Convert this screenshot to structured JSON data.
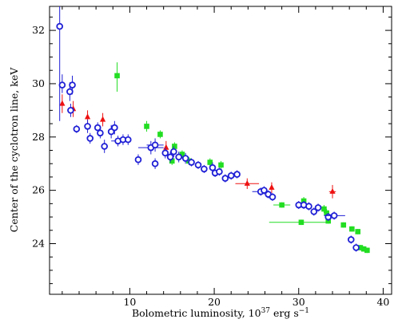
{
  "chart_data": {
    "type": "scatter",
    "title": "",
    "xlabel": "Bolometric luminosity, 10",
    "xlabel_sup": "37",
    "xlabel_unit": " erg s",
    "xlabel_unit_sup": "−1",
    "ylabel": "Center of the cyclotron line, keV",
    "xlim": [
      0.5,
      41
    ],
    "ylim": [
      22.1,
      32.9
    ],
    "xticks": [
      10,
      20,
      30,
      40
    ],
    "xtick_labels": [
      "10",
      "20",
      "30",
      "40"
    ],
    "yticks": [
      24,
      26,
      28,
      30,
      32
    ],
    "ytick_labels": [
      "24",
      "26",
      "28",
      "30",
      "32"
    ],
    "grid": false,
    "legend": "none",
    "series": [
      {
        "marker": "open-circle",
        "color": "#1f1fd6",
        "points": [
          {
            "x": 1.7,
            "y": 32.15,
            "ylo": 28.6,
            "yhi": 32.9
          },
          {
            "x": 2.0,
            "y": 29.95,
            "ylo": 29.65,
            "yhi": 30.35
          },
          {
            "x": 2.9,
            "y": 29.7,
            "ylo": 29.35,
            "yhi": 30.05
          },
          {
            "x": 3.2,
            "y": 29.95,
            "ylo": 29.6,
            "yhi": 30.3
          },
          {
            "x": 3.0,
            "y": 29.0,
            "ylo": 28.75,
            "yhi": 29.25
          },
          {
            "x": 3.7,
            "y": 28.3,
            "ylo": 28.15,
            "yhi": 28.45
          },
          {
            "x": 5.0,
            "y": 28.4,
            "ylo": 28.15,
            "yhi": 28.65
          },
          {
            "x": 5.3,
            "y": 27.95,
            "ylo": 27.75,
            "yhi": 28.15
          },
          {
            "x": 6.2,
            "y": 28.35,
            "ylo": 28.15,
            "yhi": 28.55
          },
          {
            "x": 6.5,
            "y": 28.15,
            "ylo": 27.95,
            "yhi": 28.35
          },
          {
            "x": 7.0,
            "y": 27.65,
            "ylo": 27.4,
            "yhi": 27.9
          },
          {
            "x": 7.8,
            "y": 28.2,
            "ylo": 27.95,
            "yhi": 28.45
          },
          {
            "x": 8.2,
            "y": 28.35,
            "ylo": 28.1,
            "yhi": 28.6
          },
          {
            "x": 8.6,
            "y": 27.85,
            "ylo": 27.65,
            "yhi": 28.05,
            "xlo": 7.8,
            "xhi": 9.4
          },
          {
            "x": 9.2,
            "y": 27.9,
            "ylo": 27.7,
            "yhi": 28.1
          },
          {
            "x": 9.8,
            "y": 27.9,
            "ylo": 27.7,
            "yhi": 28.1
          },
          {
            "x": 11.0,
            "y": 27.15,
            "ylo": 26.95,
            "yhi": 27.35
          },
          {
            "x": 12.5,
            "y": 27.6,
            "ylo": 27.35,
            "yhi": 27.85,
            "xlo": 11.0,
            "xhi": 14.0
          },
          {
            "x": 13.0,
            "y": 27.7,
            "ylo": 27.45,
            "yhi": 27.95,
            "xlo": 12.0,
            "xhi": 14.0
          },
          {
            "x": 13.0,
            "y": 27.0,
            "ylo": 26.8,
            "yhi": 27.2
          },
          {
            "x": 14.2,
            "y": 27.4,
            "ylo": 27.2,
            "yhi": 27.6
          },
          {
            "x": 14.8,
            "y": 27.25,
            "ylo": 27.05,
            "yhi": 27.45
          },
          {
            "x": 15.2,
            "y": 27.45,
            "ylo": 27.25,
            "yhi": 27.65
          },
          {
            "x": 15.8,
            "y": 27.25,
            "ylo": 27.05,
            "yhi": 27.45
          },
          {
            "x": 16.6,
            "y": 27.2,
            "ylo": 27.0,
            "yhi": 27.4
          },
          {
            "x": 17.3,
            "y": 27.05,
            "ylo": 26.9,
            "yhi": 27.2
          },
          {
            "x": 18.1,
            "y": 26.95,
            "ylo": 26.8,
            "yhi": 27.1
          },
          {
            "x": 18.8,
            "y": 26.8,
            "ylo": 26.65,
            "yhi": 26.95
          },
          {
            "x": 19.8,
            "y": 26.85,
            "ylo": 26.65,
            "yhi": 27.05
          },
          {
            "x": 20.1,
            "y": 26.65,
            "ylo": 26.5,
            "yhi": 26.8
          },
          {
            "x": 20.6,
            "y": 26.7,
            "ylo": 26.55,
            "yhi": 26.85
          },
          {
            "x": 21.3,
            "y": 26.45,
            "ylo": 26.3,
            "yhi": 26.6
          },
          {
            "x": 22.0,
            "y": 26.55,
            "ylo": 26.4,
            "yhi": 26.7
          },
          {
            "x": 22.7,
            "y": 26.6,
            "ylo": 26.45,
            "yhi": 26.75
          },
          {
            "x": 25.5,
            "y": 25.95,
            "ylo": 25.8,
            "yhi": 26.1,
            "xlo": 24.5,
            "xhi": 26.5
          },
          {
            "x": 25.9,
            "y": 26.0,
            "ylo": 25.85,
            "yhi": 26.15
          },
          {
            "x": 26.4,
            "y": 25.85,
            "ylo": 25.7,
            "yhi": 26.0
          },
          {
            "x": 26.9,
            "y": 25.75,
            "ylo": 25.6,
            "yhi": 25.9
          },
          {
            "x": 30.0,
            "y": 25.45,
            "ylo": 25.3,
            "yhi": 25.6
          },
          {
            "x": 30.6,
            "y": 25.45,
            "ylo": 25.3,
            "yhi": 25.6
          },
          {
            "x": 31.2,
            "y": 25.4,
            "ylo": 25.25,
            "yhi": 25.55
          },
          {
            "x": 31.8,
            "y": 25.2,
            "ylo": 25.05,
            "yhi": 25.35
          },
          {
            "x": 32.3,
            "y": 25.35,
            "ylo": 25.2,
            "yhi": 25.5
          },
          {
            "x": 33.5,
            "y": 25.0,
            "ylo": 24.85,
            "yhi": 25.15
          },
          {
            "x": 34.2,
            "y": 25.05,
            "ylo": 24.9,
            "yhi": 25.2,
            "xlo": 33.0,
            "xhi": 35.5
          },
          {
            "x": 36.2,
            "y": 24.15,
            "ylo": 24.0,
            "yhi": 24.3
          },
          {
            "x": 36.8,
            "y": 23.85,
            "ylo": 23.7,
            "yhi": 24.0
          }
        ]
      },
      {
        "marker": "filled-square",
        "color": "#22dd22",
        "points": [
          {
            "x": 8.5,
            "y": 30.3,
            "ylo": 29.7,
            "yhi": 30.8
          },
          {
            "x": 12.0,
            "y": 28.4,
            "ylo": 28.2,
            "yhi": 28.6
          },
          {
            "x": 13.6,
            "y": 28.1,
            "ylo": 27.95,
            "yhi": 28.25
          },
          {
            "x": 15.3,
            "y": 27.65,
            "ylo": 27.5,
            "yhi": 27.8
          },
          {
            "x": 16.2,
            "y": 27.35,
            "ylo": 27.2,
            "yhi": 27.5
          },
          {
            "x": 15.0,
            "y": 27.1,
            "ylo": 26.95,
            "yhi": 27.25
          },
          {
            "x": 17.0,
            "y": 27.1,
            "ylo": 26.95,
            "yhi": 27.25
          },
          {
            "x": 19.5,
            "y": 27.05,
            "ylo": 26.9,
            "yhi": 27.2
          },
          {
            "x": 20.8,
            "y": 26.95,
            "ylo": 26.8,
            "yhi": 27.1
          },
          {
            "x": 28.0,
            "y": 25.45,
            "ylo": 25.35,
            "yhi": 25.55,
            "xlo": 27.0,
            "xhi": 29.0
          },
          {
            "x": 30.6,
            "y": 25.6,
            "ylo": 25.45,
            "yhi": 25.75
          },
          {
            "x": 30.3,
            "y": 24.8,
            "ylo": 24.7,
            "yhi": 24.9,
            "xlo": 26.5,
            "xhi": 33.5
          },
          {
            "x": 33.0,
            "y": 25.3,
            "ylo": 25.15,
            "yhi": 25.45
          },
          {
            "x": 33.3,
            "y": 25.15,
            "ylo": 25.0,
            "yhi": 25.3
          },
          {
            "x": 33.5,
            "y": 24.85,
            "ylo": 24.75,
            "yhi": 24.95
          },
          {
            "x": 35.3,
            "y": 24.7,
            "ylo": 24.6,
            "yhi": 24.8
          },
          {
            "x": 36.3,
            "y": 24.55,
            "ylo": 24.45,
            "yhi": 24.65
          },
          {
            "x": 37.0,
            "y": 24.45,
            "ylo": 24.35,
            "yhi": 24.55
          },
          {
            "x": 37.3,
            "y": 23.85,
            "ylo": 23.75,
            "yhi": 23.95
          },
          {
            "x": 37.7,
            "y": 23.8,
            "ylo": 23.7,
            "yhi": 23.9
          },
          {
            "x": 38.1,
            "y": 23.75,
            "ylo": 23.65,
            "yhi": 23.85
          }
        ]
      },
      {
        "marker": "filled-triangle",
        "color": "#ee1111",
        "points": [
          {
            "x": 2.0,
            "y": 29.25,
            "ylo": 28.9,
            "yhi": 29.6
          },
          {
            "x": 3.3,
            "y": 29.05,
            "ylo": 28.75,
            "yhi": 29.35
          },
          {
            "x": 5.0,
            "y": 28.75,
            "ylo": 28.5,
            "yhi": 29.0
          },
          {
            "x": 6.8,
            "y": 28.65,
            "ylo": 28.4,
            "yhi": 28.9
          },
          {
            "x": 14.3,
            "y": 27.6,
            "ylo": 27.35,
            "yhi": 27.85
          },
          {
            "x": 23.9,
            "y": 26.25,
            "ylo": 26.05,
            "yhi": 26.45,
            "xlo": 22.5,
            "xhi": 25.3
          },
          {
            "x": 26.8,
            "y": 26.1,
            "ylo": 25.9,
            "yhi": 26.3
          },
          {
            "x": 34.0,
            "y": 25.95,
            "ylo": 25.7,
            "yhi": 26.2,
            "xlo": 33.6,
            "xhi": 34.4
          }
        ]
      }
    ]
  }
}
